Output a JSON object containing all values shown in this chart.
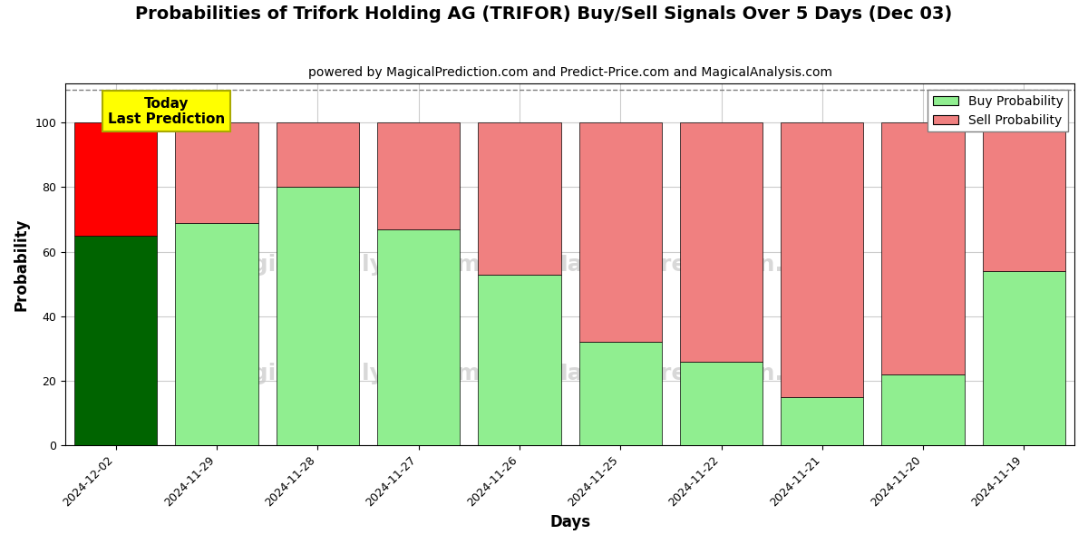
{
  "title": "Probabilities of Trifork Holding AG (TRIFOR) Buy/Sell Signals Over 5 Days (Dec 03)",
  "subtitle": "powered by MagicalPrediction.com and Predict-Price.com and MagicalAnalysis.com",
  "xlabel": "Days",
  "ylabel": "Probability",
  "categories": [
    "2024-12-02",
    "2024-11-29",
    "2024-11-28",
    "2024-11-27",
    "2024-11-26",
    "2024-11-25",
    "2024-11-22",
    "2024-11-21",
    "2024-11-20",
    "2024-11-19"
  ],
  "buy_values": [
    65,
    69,
    80,
    67,
    53,
    32,
    26,
    15,
    22,
    54
  ],
  "sell_values": [
    35,
    31,
    20,
    33,
    47,
    68,
    74,
    85,
    78,
    46
  ],
  "buy_color_today": "#006400",
  "sell_color_today": "#FF0000",
  "buy_color_normal": "#90EE90",
  "sell_color_normal": "#F08080",
  "bar_edge_color": "black",
  "bar_edge_width": 0.5,
  "ylim_max": 112,
  "yticks": [
    0,
    20,
    40,
    60,
    80,
    100
  ],
  "dashed_line_y": 110,
  "legend_buy_label": "Buy Probability",
  "legend_sell_label": "Sell Probability",
  "today_annotation": "Today\nLast Prediction",
  "annotation_box_color": "yellow",
  "annotation_box_edge": "#AAAA00",
  "background_color": "#ffffff",
  "grid_color": "#cccccc",
  "title_fontsize": 14,
  "subtitle_fontsize": 10,
  "axis_label_fontsize": 12,
  "tick_fontsize": 9,
  "bar_width": 0.82
}
